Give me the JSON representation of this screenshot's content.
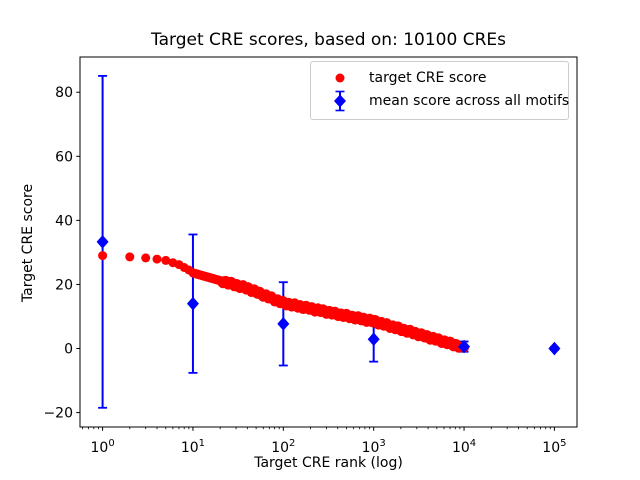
{
  "chart_data": {
    "type": "scatter",
    "title": "Target CRE scores, based on: 10100 CREs",
    "xlabel": "Target CRE rank (log)",
    "ylabel": "Target CRE score",
    "x_scale": "log",
    "xlim_log10": [
      -0.25,
      5.25
    ],
    "ylim": [
      -24.5,
      91
    ],
    "grid": false,
    "x_major_ticks_log10": [
      0,
      1,
      2,
      3,
      4,
      5
    ],
    "x_tick_base": "10",
    "x_tick_exponents": [
      "0",
      "1",
      "2",
      "3",
      "4",
      "5"
    ],
    "y_ticks": [
      -20,
      0,
      20,
      40,
      60,
      80
    ],
    "y_tick_labels": [
      "−20",
      "0",
      "20",
      "40",
      "60",
      "80"
    ],
    "legend_position": "upper right",
    "colors": {
      "red_series": "#ff0000",
      "blue_series": "#0000ff",
      "axis": "#000000",
      "legend_border": "#cccccc"
    },
    "series": [
      {
        "name": "target CRE score",
        "type": "scatter",
        "marker": "circle",
        "color": "#ff0000",
        "n_points": 10100,
        "rank_min": 1,
        "rank_max": 10100,
        "profile_log10_rank": [
          0,
          0.301,
          0.477,
          0.602,
          0.699,
          0.778,
          0.845,
          0.954,
          1.0,
          1.3,
          1.6,
          2.0,
          2.5,
          3.0,
          3.5,
          4.0,
          4.0043
        ],
        "profile_score": [
          29.0,
          28.6,
          28.3,
          27.9,
          27.5,
          26.8,
          26.2,
          24.5,
          23.6,
          21.2,
          18.8,
          14.2,
          11.3,
          8.5,
          4.4,
          0.3,
          0.2
        ]
      },
      {
        "name": "mean score across all motifs",
        "type": "errorbar",
        "marker": "diamond",
        "color": "#0000ff",
        "x": [
          1,
          10,
          100,
          1000,
          10000,
          100000
        ],
        "y": [
          33.3,
          14.0,
          7.7,
          2.9,
          0.6,
          0.0
        ],
        "yerr": [
          51.8,
          21.6,
          13.0,
          7.0,
          1.6,
          0.4
        ]
      }
    ]
  }
}
